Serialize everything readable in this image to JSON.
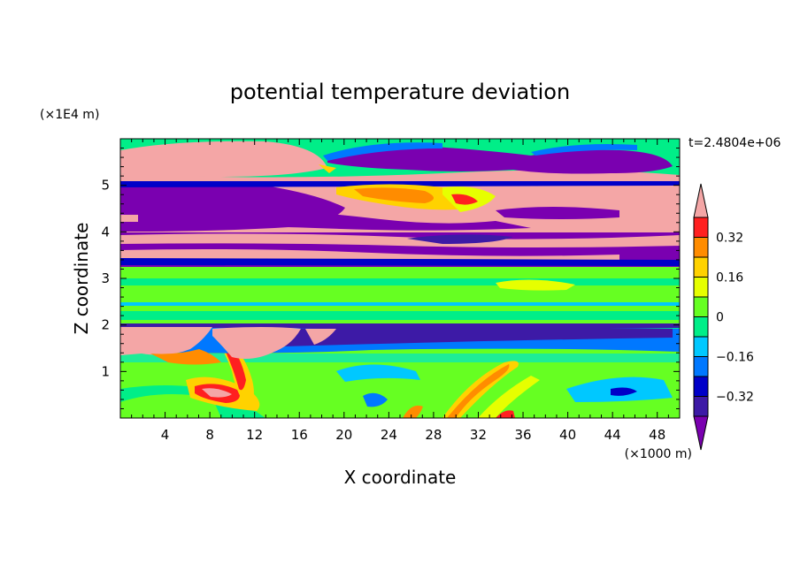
{
  "chart_data": {
    "type": "heatmap",
    "title": "potential temperature deviation",
    "xlabel": "X coordinate",
    "ylabel": "Z coordinate",
    "x_unit": "(×1000 m)",
    "y_unit": "(×1E4 m)",
    "time_label": "t=2.4804e+06",
    "xlim": [
      0,
      50
    ],
    "ylim": [
      0,
      6
    ],
    "x_ticks": [
      "4",
      "8",
      "12",
      "16",
      "20",
      "24",
      "28",
      "32",
      "36",
      "40",
      "44",
      "48"
    ],
    "y_ticks": [
      "1",
      "2",
      "3",
      "4",
      "5"
    ],
    "colorbar": {
      "levels": [
        -0.4,
        -0.32,
        -0.24,
        -0.16,
        -0.08,
        0,
        0.08,
        0.16,
        0.24,
        0.32,
        0.4
      ],
      "labels": [
        "0.32",
        "0.16",
        "0",
        "−0.16",
        "−0.32"
      ],
      "colors": [
        "#7a00b0",
        "#3d1aa6",
        "#0000c8",
        "#0078ff",
        "#00c8ff",
        "#00ee88",
        "#66ff22",
        "#e6ff00",
        "#ffd200",
        "#ff8c00",
        "#ff2020",
        "#f4a6a6"
      ]
    },
    "regions": [
      {
        "band": [
          5.5,
          5.9
        ],
        "value": "above 0.40"
      },
      {
        "band": [
          5.3,
          5.8
        ],
        "value": "below -0.40",
        "x": [
          20,
          46
        ]
      },
      {
        "band": [
          4.3,
          5.1
        ],
        "value": "below -0.40",
        "x": [
          0,
          24
        ]
      },
      {
        "band": [
          4.3,
          5.0
        ],
        "value": "above 0.40",
        "x": [
          26,
          50
        ]
      },
      {
        "band": [
          3.3,
          4.2
        ],
        "value": "mixed -0.40 to 0.40"
      },
      {
        "band": [
          2.2,
          3.2
        ],
        "value": "near 0"
      },
      {
        "band": [
          1.5,
          2.0
        ],
        "value": "below -0.40"
      },
      {
        "band": [
          0.0,
          1.5
        ],
        "value": "near 0 with local warm anomalies"
      }
    ]
  },
  "colors": {
    "frame": "#000000",
    "background": "#ffffff"
  }
}
